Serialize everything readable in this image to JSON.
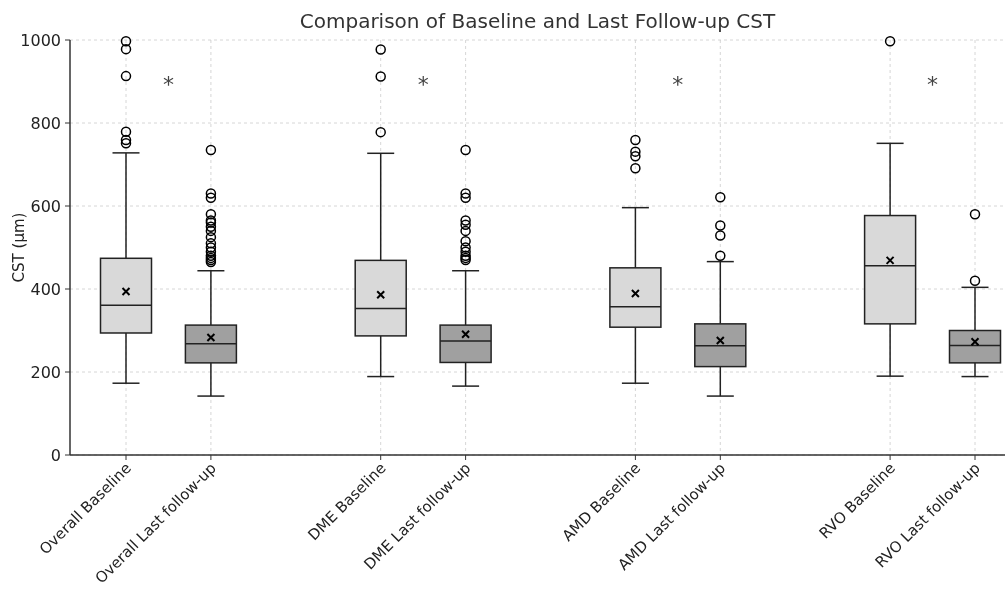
{
  "chart_data": {
    "type": "box",
    "title": "Comparison of Baseline and Last Follow-up CST",
    "ylabel": "CST (µm)",
    "categories": [
      "Overall Baseline",
      "Overall Last follow-up",
      "DME Baseline",
      "DME Last follow-up",
      "AMD Baseline",
      "AMD Last follow-up",
      "RVO Baseline",
      "RVO Last follow-up"
    ],
    "colors": [
      "#d9d9d9",
      "#a0a0a0",
      "#d9d9d9",
      "#a0a0a0",
      "#d9d9d9",
      "#a0a0a0",
      "#d9d9d9",
      "#a0a0a0"
    ],
    "boxes": [
      {
        "low": 173,
        "q1": 294,
        "median": 361,
        "q3": 474,
        "high": 728,
        "mean": 394,
        "outliers": [
          751,
          759,
          779,
          913,
          978,
          997
        ]
      },
      {
        "low": 142,
        "q1": 222,
        "median": 268,
        "q3": 313,
        "high": 444,
        "mean": 283,
        "outliers": [
          465,
          470,
          475,
          480,
          490,
          500,
          510,
          525,
          540,
          550,
          560,
          565,
          580,
          620,
          630,
          735
        ]
      },
      {
        "low": 189,
        "q1": 287,
        "median": 353,
        "q3": 469,
        "high": 727,
        "mean": 386,
        "outliers": [
          778,
          912,
          977
        ]
      },
      {
        "low": 166,
        "q1": 223,
        "median": 275,
        "q3": 313,
        "high": 444,
        "mean": 291,
        "outliers": [
          470,
          475,
          480,
          490,
          500,
          515,
          540,
          555,
          565,
          620,
          630,
          735
        ]
      },
      {
        "low": 173,
        "q1": 308,
        "median": 357,
        "q3": 451,
        "high": 596,
        "mean": 389,
        "outliers": [
          691,
          720,
          731,
          759
        ]
      },
      {
        "low": 142,
        "q1": 213,
        "median": 263,
        "q3": 316,
        "high": 466,
        "mean": 276,
        "outliers": [
          480,
          529,
          553,
          621
        ]
      },
      {
        "low": 190,
        "q1": 316,
        "median": 456,
        "q3": 577,
        "high": 751,
        "mean": 469,
        "outliers": [
          997
        ]
      },
      {
        "low": 189,
        "q1": 222,
        "median": 264,
        "q3": 300,
        "high": 404,
        "mean": 273,
        "outliers": [
          420,
          580
        ]
      }
    ],
    "ylim": [
      0,
      1000
    ],
    "yticks": [
      0,
      200,
      400,
      600,
      800,
      1000
    ],
    "grid": true,
    "annotations": [
      "*",
      "*",
      "*",
      "*"
    ]
  }
}
